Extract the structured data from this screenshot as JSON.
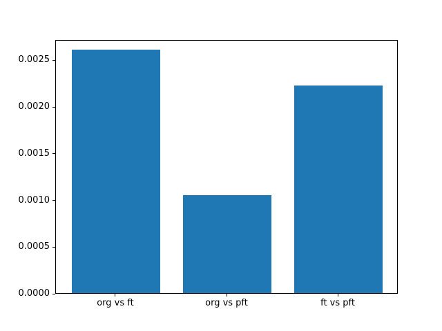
{
  "figure": {
    "background": "#ffffff",
    "text_color": "#000000",
    "spine_color": "#000000"
  },
  "chart_data": {
    "type": "bar",
    "title": "",
    "xlabel": "",
    "ylabel": "",
    "categories": [
      "org vs ft",
      "org vs pft",
      "ft vs pft"
    ],
    "values": [
      0.00261,
      0.00105,
      0.00222
    ],
    "bar_color": "#1f77b4",
    "ylim": [
      0,
      0.002717
    ],
    "yticks": [
      0.0,
      0.0005,
      0.001,
      0.0015,
      0.002,
      0.0025
    ],
    "ytick_labels": [
      "0.0000",
      "0.0005",
      "0.0010",
      "0.0015",
      "0.0020",
      "0.0025"
    ],
    "grid": false,
    "legend": false
  }
}
